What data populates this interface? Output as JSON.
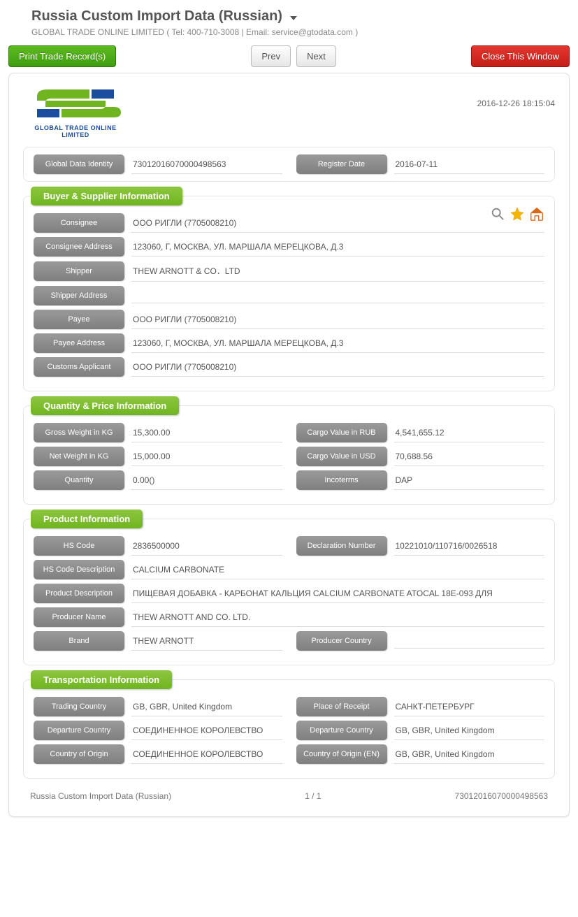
{
  "header": {
    "title": "Russia Custom Import Data (Russian)",
    "company_info": "GLOBAL TRADE ONLINE LIMITED ( Tel: 400-710-3008 | Email: service@gtodata.com )"
  },
  "toolbar": {
    "print_label": "Print Trade Record(s)",
    "prev_label": "Prev",
    "next_label": "Next",
    "close_label": "Close This Window"
  },
  "panel": {
    "logo_text": "GLOBAL TRADE  ONLINE LIMITED",
    "timestamp": "2016-12-26 18:15:04",
    "gdi_label": "Global Data Identity",
    "gdi_value": "730120160700004985­63",
    "regdate_label": "Register Date",
    "regdate_value": "2016-07-11"
  },
  "sections": {
    "buyer": {
      "title": "Buyer & Supplier Information",
      "fields": [
        {
          "label": "Consignee",
          "value": "ООО РИГЛИ (7705008210)"
        },
        {
          "label": "Consignee Address",
          "value": "123060, Г, МОСКВА, УЛ. МАРШАЛА МЕРЕЦКОВА, Д.3"
        },
        {
          "label": "Shipper",
          "value": "THEW ARNOTT & CO．LTD"
        },
        {
          "label": "Shipper Address",
          "value": ""
        },
        {
          "label": "Payee",
          "value": "ООО РИГЛИ  (7705008210)"
        },
        {
          "label": "Payee Address",
          "value": "123060, Г, МОСКВА, УЛ. МАРШАЛА МЕРЕЦКОВА, Д.3"
        },
        {
          "label": "Customs Applicant",
          "value": "ООО РИГЛИ  (7705008210)"
        }
      ]
    },
    "quantity": {
      "title": "Quantity & Price Information",
      "rows": [
        {
          "l1": "Gross Weight in KG",
          "v1": "15,300.00",
          "l2": "Cargo Value in RUB",
          "v2": "4,541,655.12"
        },
        {
          "l1": "Net Weight in KG",
          "v1": "15,000.00",
          "l2": "Cargo Value in USD",
          "v2": "70,688.56"
        },
        {
          "l1": "Quantity",
          "v1": "0.00()",
          "l2": "Incoterms",
          "v2": "DAP"
        }
      ]
    },
    "product": {
      "title": "Product Information",
      "row1": {
        "l1": "HS Code",
        "v1": "2836500000",
        "l2": "Declaration Number",
        "v2": "10221010/110716/0026518"
      },
      "fields": [
        {
          "label": "HS Code Description",
          "value": "CALCIUM CARBONATE"
        },
        {
          "label": "Product Description",
          "value": "ПИЩЕВАЯ ДОБАВКА - КАРБОНАТ КАЛЬЦИЯ CALCIUM CARBONATE ATOCAL 18E-093 ДЛЯ"
        },
        {
          "label": "Producer Name",
          "value": "THEW ARNOTT AND CO. LTD."
        }
      ],
      "row_last": {
        "l1": "Brand",
        "v1": "THEW ARNOTT",
        "l2": "Producer Country",
        "v2": ""
      }
    },
    "transport": {
      "title": "Transportation Information",
      "rows": [
        {
          "l1": "Trading Country",
          "v1": "GB, GBR, United Kingdom",
          "l2": "Place of Receipt",
          "v2": "САНКТ-ПЕТЕРБУРГ"
        },
        {
          "l1": "Departure Country",
          "v1": "СОЕДИНЕННОЕ КОРОЛЕВСТВО",
          "l2": "Departure Country",
          "v2": "GB, GBR, United Kingdom"
        },
        {
          "l1": "Country of Origin",
          "v1": "СОЕДИНЕННОЕ КОРОЛЕВСТВО",
          "l2": "Country of Origin (EN)",
          "v2": "GB, GBR, United Kingdom"
        }
      ]
    }
  },
  "footer": {
    "left": "Russia Custom Import Data (Russian)",
    "center": "1 / 1",
    "right": "730120160700004985­63"
  },
  "colors": {
    "green_top": "#8dc63f",
    "green_bottom": "#6fb520",
    "gray_label_top": "#9a9a9a",
    "gray_label_bottom": "#7f7f7f",
    "red_top": "#e3372e",
    "red_bottom": "#c41e17",
    "logo_green": "#6fb520",
    "logo_blue": "#1a4d9e"
  }
}
